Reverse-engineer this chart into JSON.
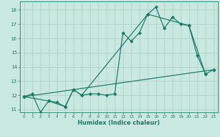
{
  "xlabel": "Humidex (Indice chaleur)",
  "bg_color": "#c8e8e0",
  "grid_color": "#b0d0c8",
  "line_color": "#1a7a6a",
  "xlim": [
    -0.5,
    23.5
  ],
  "ylim": [
    10.8,
    18.6
  ],
  "yticks": [
    11,
    12,
    13,
    14,
    15,
    16,
    17,
    18
  ],
  "xticks": [
    0,
    1,
    2,
    3,
    4,
    5,
    6,
    7,
    8,
    9,
    10,
    11,
    12,
    13,
    14,
    15,
    16,
    17,
    18,
    19,
    20,
    21,
    22,
    23
  ],
  "series1_x": [
    0,
    1,
    2,
    3,
    4,
    5,
    6,
    7,
    8,
    9,
    10,
    11,
    12,
    13,
    14,
    15,
    16,
    17,
    18,
    19,
    20,
    21,
    22,
    23
  ],
  "series1_y": [
    11.9,
    12.1,
    10.8,
    11.6,
    11.5,
    11.2,
    12.4,
    12.0,
    12.1,
    12.1,
    12.0,
    12.1,
    16.4,
    15.8,
    16.4,
    17.7,
    18.2,
    16.7,
    17.5,
    17.0,
    16.9,
    14.8,
    13.5,
    13.8
  ],
  "series2_x": [
    0,
    3,
    5,
    6,
    7,
    15,
    20,
    22
  ],
  "series2_y": [
    11.9,
    11.6,
    11.2,
    12.4,
    12.0,
    17.7,
    16.9,
    13.5
  ],
  "series3_x": [
    0,
    23
  ],
  "series3_y": [
    11.9,
    13.8
  ],
  "marker_size": 2.5,
  "line_width": 0.9
}
